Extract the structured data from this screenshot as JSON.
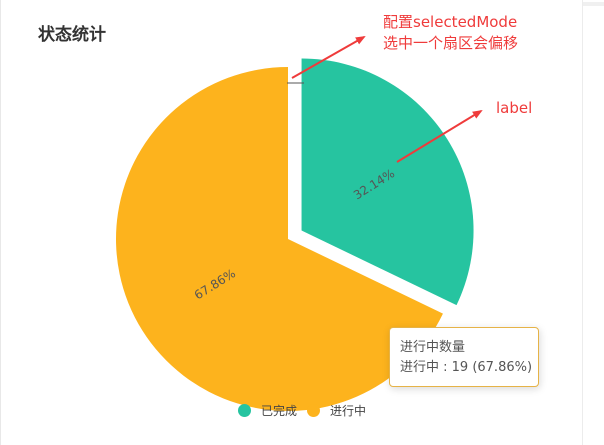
{
  "panel": {
    "title": "状态统计"
  },
  "annotations": {
    "selected_mode": [
      "配置selectedMode",
      "选中一个扇区会偏移"
    ],
    "label": "label"
  },
  "tooltip": {
    "title": "进行中数量",
    "line": "进行中 : 19 (67.86%)"
  },
  "colors": {
    "done": "#26c4a0",
    "in_progress": "#fdb31d",
    "annotation": "#ef3b3b"
  },
  "chart_data": {
    "type": "pie",
    "title": "状态统计",
    "series": [
      {
        "name": "已完成",
        "value": 9,
        "percent_label": "32.14%",
        "color": "#26c4a0",
        "selected": true
      },
      {
        "name": "进行中",
        "value": 19,
        "percent_label": "67.86%",
        "color": "#fdb31d",
        "selected": false
      }
    ],
    "label_position": "inside",
    "legend_position": "bottom-center"
  }
}
